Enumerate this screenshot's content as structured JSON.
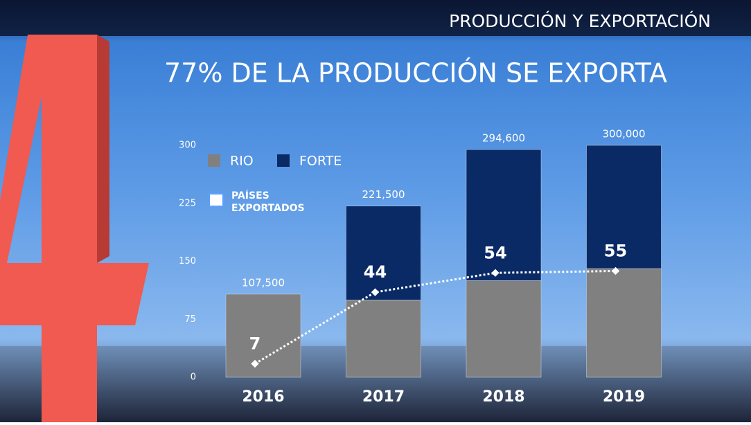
{
  "header": "PRODUCCIÓN Y EXPORTACIÓN",
  "chart_data": {
    "type": "bar",
    "stacked": true,
    "title": "77% DE LA PRODUCCIÓN SE EXPORTA",
    "categories": [
      "2016",
      "2017",
      "2018",
      "2019"
    ],
    "series": [
      {
        "name": "RIO",
        "color": "#808080",
        "values": [
          107.5,
          100,
          125,
          140.6
        ]
      },
      {
        "name": "FORTE",
        "color": "#0a2a66",
        "values": [
          null,
          121.5,
          169.6,
          159.4
        ]
      },
      {
        "name": "PAÍSES EXPORTADOS",
        "type": "line",
        "axis": "y2",
        "color": "#ffffff",
        "values": [
          7,
          44,
          54,
          55
        ]
      }
    ],
    "totals": {
      "values": [
        107.5,
        221.5,
        294.6,
        300
      ],
      "value_labels": [
        "107,500",
        "221,500",
        "294,600",
        "300,000"
      ]
    },
    "ylim": [
      0,
      300
    ],
    "yticks": [
      0,
      75,
      150,
      225,
      300
    ],
    "y2lim": [
      0,
      120
    ]
  }
}
